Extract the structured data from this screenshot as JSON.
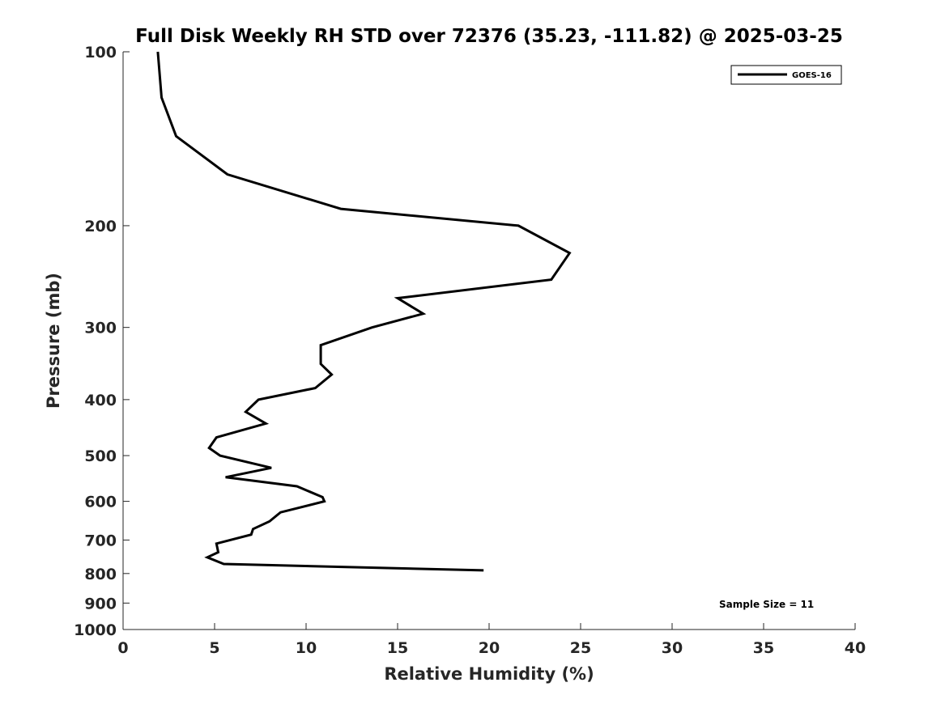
{
  "chart_data": {
    "type": "line",
    "title": "Full Disk Weekly RH STD over 72376 (35.23, -111.82) @ 2025-03-25",
    "xlabel": "Relative Humidity (%)",
    "ylabel": "Pressure (mb)",
    "xlim": [
      0,
      40
    ],
    "ylim": [
      100,
      1000
    ],
    "y_scale": "log",
    "y_reversed": true,
    "grid": false,
    "legend_position": "top-right",
    "x_ticks": [
      0,
      5,
      10,
      15,
      20,
      25,
      30,
      35,
      40
    ],
    "y_ticks": [
      100,
      200,
      300,
      400,
      500,
      600,
      700,
      800,
      900,
      1000
    ],
    "series": [
      {
        "name": "GOES-16",
        "color": "#000000",
        "points": [
          [
            1.9,
            100
          ],
          [
            2.1,
            120
          ],
          [
            2.9,
            140
          ],
          [
            5.7,
            163
          ],
          [
            11.9,
            187
          ],
          [
            21.6,
            200
          ],
          [
            24.4,
            223
          ],
          [
            23.4,
            248
          ],
          [
            15.0,
            267
          ],
          [
            16.4,
            284
          ],
          [
            13.6,
            300
          ],
          [
            10.8,
            322
          ],
          [
            10.8,
            347
          ],
          [
            11.4,
            362
          ],
          [
            10.5,
            382
          ],
          [
            7.4,
            400
          ],
          [
            6.7,
            420
          ],
          [
            7.8,
            440
          ],
          [
            5.1,
            465
          ],
          [
            4.7,
            485
          ],
          [
            5.3,
            500
          ],
          [
            8.1,
            525
          ],
          [
            5.6,
            545
          ],
          [
            9.5,
            565
          ],
          [
            10.9,
            590
          ],
          [
            11.0,
            600
          ],
          [
            8.6,
            627
          ],
          [
            8.0,
            650
          ],
          [
            7.1,
            670
          ],
          [
            7.0,
            685
          ],
          [
            5.1,
            710
          ],
          [
            5.2,
            735
          ],
          [
            4.6,
            750
          ],
          [
            5.5,
            770
          ],
          [
            19.7,
            790
          ]
        ]
      }
    ],
    "annotations": [
      "Sample Size = 11"
    ]
  }
}
